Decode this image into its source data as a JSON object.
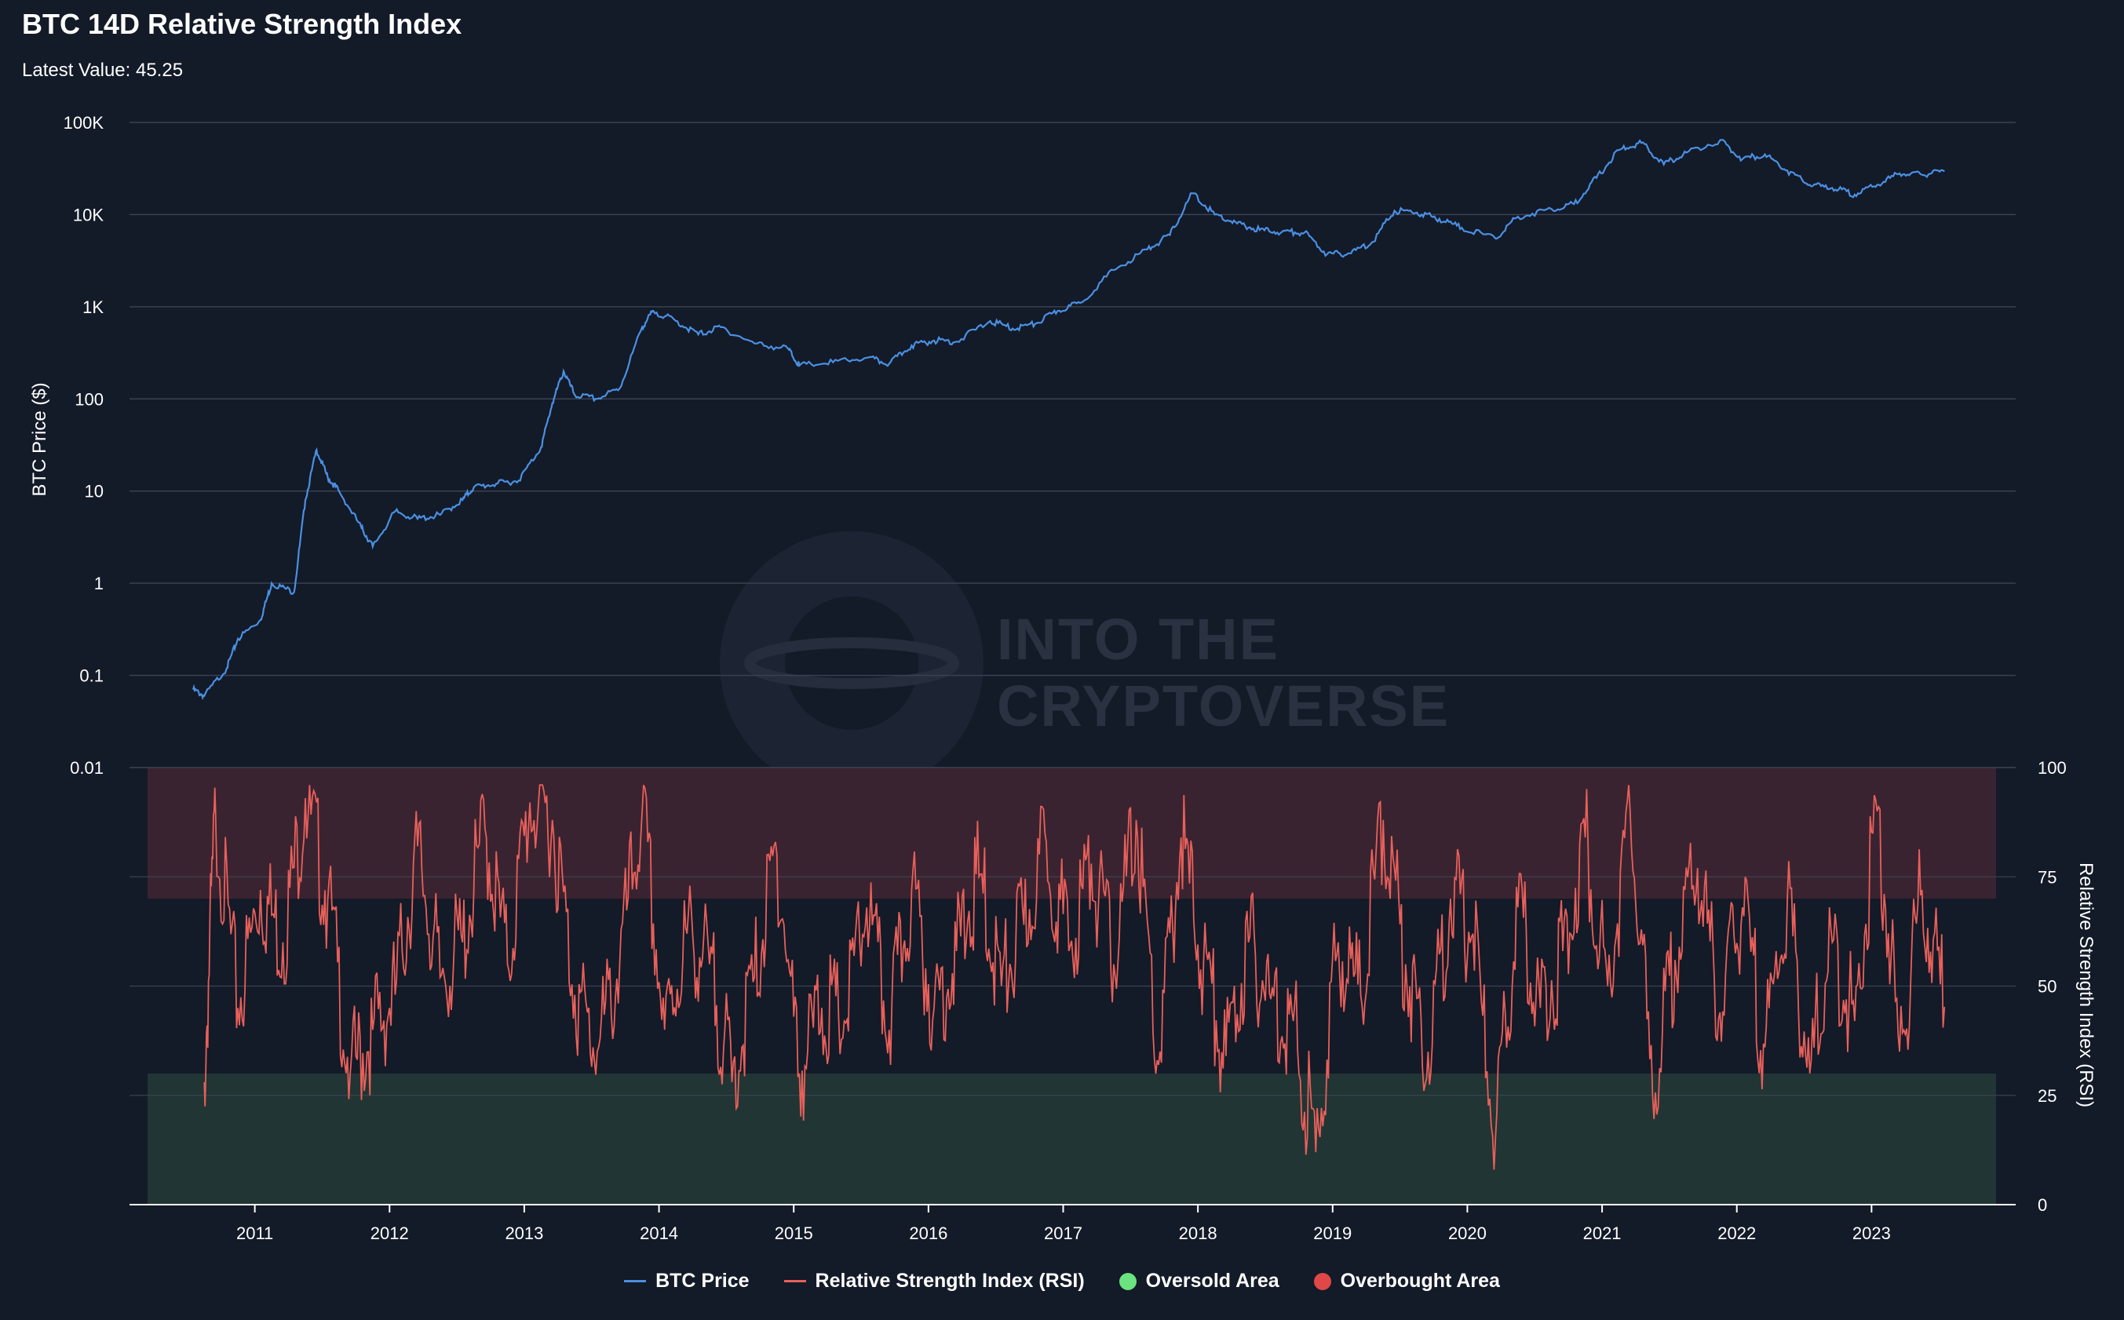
{
  "title": "BTC 14D Relative Strength Index",
  "latest_value_line": "Latest Value: 45.25",
  "watermark": {
    "line1": "INTO THE",
    "line2": "CRYPTOVERSE"
  },
  "colors": {
    "background": "#131a28",
    "price": "#4a90e2",
    "rsi": "#e8605a",
    "overbought_band": "#3a2330",
    "oversold_band": "#213534",
    "oversold_legend": "#6be37f",
    "overbought_legend": "#e04747",
    "grid": "#3a4252"
  },
  "legend": [
    {
      "label": "BTC Price",
      "kind": "line",
      "color": "#4a90e2"
    },
    {
      "label": "Relative Strength Index (RSI)",
      "kind": "line",
      "color": "#e8605a"
    },
    {
      "label": "Oversold Area",
      "kind": "dot",
      "color": "#6be37f"
    },
    {
      "label": "Overbought Area",
      "kind": "dot",
      "color": "#e04747"
    }
  ],
  "chart_data": [
    {
      "type": "line",
      "name": "BTC Price",
      "ylabel": "BTC Price ($)",
      "yscale": "log",
      "ylim": [
        0.01,
        100000
      ],
      "yticks": [
        {
          "value": 100000,
          "label": "100K"
        },
        {
          "value": 10000,
          "label": "10K"
        },
        {
          "value": 1000,
          "label": "1K"
        },
        {
          "value": 100,
          "label": "100"
        },
        {
          "value": 10,
          "label": "10"
        },
        {
          "value": 1,
          "label": "1"
        },
        {
          "value": 0.1,
          "label": "0.1"
        },
        {
          "value": 0.01,
          "label": "0.01"
        }
      ],
      "x_years": [
        "2011",
        "2012",
        "2013",
        "2014",
        "2015",
        "2016",
        "2017",
        "2018",
        "2019",
        "2020",
        "2021",
        "2022",
        "2023"
      ],
      "x": [
        "2010-07",
        "2010-08",
        "2010-10",
        "2010-11",
        "2011-01",
        "2011-02",
        "2011-04",
        "2011-05",
        "2011-06",
        "2011-07",
        "2011-08",
        "2011-10",
        "2011-11",
        "2012-01",
        "2012-03",
        "2012-05",
        "2012-07",
        "2012-08",
        "2012-10",
        "2012-12",
        "2013-02",
        "2013-03",
        "2013-04",
        "2013-05",
        "2013-07",
        "2013-09",
        "2013-11",
        "2013-12",
        "2014-02",
        "2014-04",
        "2014-06",
        "2014-09",
        "2014-12",
        "2015-01",
        "2015-04",
        "2015-07",
        "2015-09",
        "2015-11",
        "2016-01",
        "2016-03",
        "2016-06",
        "2016-08",
        "2016-10",
        "2016-12",
        "2017-02",
        "2017-05",
        "2017-08",
        "2017-10",
        "2017-12",
        "2018-02",
        "2018-04",
        "2018-06",
        "2018-08",
        "2018-10",
        "2018-12",
        "2019-02",
        "2019-04",
        "2019-06",
        "2019-08",
        "2019-10",
        "2019-12",
        "2020-03",
        "2020-05",
        "2020-08",
        "2020-10",
        "2020-12",
        "2021-02",
        "2021-04",
        "2021-06",
        "2021-08",
        "2021-11",
        "2022-01",
        "2022-03",
        "2022-05",
        "2022-07",
        "2022-09",
        "2022-11",
        "2023-01",
        "2023-03",
        "2023-05",
        "2023-07"
      ],
      "y": [
        0.07,
        0.06,
        0.12,
        0.25,
        0.4,
        1.0,
        0.8,
        8,
        28,
        14,
        10,
        4,
        2.5,
        6,
        5,
        5.5,
        8,
        11,
        12,
        13,
        30,
        90,
        200,
        110,
        100,
        130,
        600,
        900,
        700,
        500,
        600,
        400,
        350,
        230,
        250,
        280,
        240,
        380,
        430,
        420,
        700,
        580,
        650,
        900,
        1100,
        2500,
        4200,
        6000,
        17000,
        10000,
        8000,
        6800,
        6500,
        6400,
        3700,
        3800,
        5000,
        11000,
        10500,
        9000,
        7200,
        5500,
        9500,
        11500,
        13000,
        25000,
        50000,
        60000,
        35000,
        47000,
        64000,
        40000,
        45000,
        30000,
        21000,
        19500,
        16500,
        21000,
        28000,
        27000,
        29500
      ]
    },
    {
      "type": "line",
      "name": "Relative Strength Index (RSI)",
      "ylabel": "Relative Strength Index (RSI)",
      "ylim": [
        0,
        100
      ],
      "yticks": [
        0,
        25,
        50,
        75,
        100
      ],
      "overbought_range": [
        70,
        100
      ],
      "oversold_range": [
        0,
        30
      ],
      "latest": 45.25,
      "x": [
        "2010-08",
        "2010-09",
        "2010-11",
        "2011-01",
        "2011-03",
        "2011-05",
        "2011-07",
        "2011-09",
        "2011-11",
        "2012-01",
        "2012-03",
        "2012-05",
        "2012-07",
        "2012-09",
        "2012-11",
        "2013-01",
        "2013-03",
        "2013-05",
        "2013-07",
        "2013-09",
        "2013-11",
        "2014-01",
        "2014-03",
        "2014-05",
        "2014-07",
        "2014-09",
        "2014-11",
        "2015-01",
        "2015-03",
        "2015-05",
        "2015-07",
        "2015-09",
        "2015-11",
        "2016-01",
        "2016-03",
        "2016-05",
        "2016-07",
        "2016-09",
        "2016-11",
        "2017-01",
        "2017-03",
        "2017-05",
        "2017-07",
        "2017-09",
        "2017-11",
        "2018-01",
        "2018-03",
        "2018-05",
        "2018-07",
        "2018-09",
        "2018-11",
        "2019-01",
        "2019-03",
        "2019-05",
        "2019-07",
        "2019-09",
        "2019-11",
        "2020-01",
        "2020-03",
        "2020-05",
        "2020-07",
        "2020-09",
        "2020-11",
        "2021-01",
        "2021-03",
        "2021-05",
        "2021-07",
        "2021-09",
        "2021-11",
        "2022-01",
        "2022-03",
        "2022-05",
        "2022-07",
        "2022-09",
        "2022-11",
        "2023-01",
        "2023-03",
        "2023-05",
        "2023-07"
      ],
      "y": [
        28,
        90,
        45,
        72,
        60,
        93,
        70,
        30,
        40,
        48,
        82,
        52,
        60,
        86,
        55,
        92,
        88,
        48,
        35,
        55,
        90,
        40,
        62,
        55,
        28,
        52,
        80,
        30,
        45,
        42,
        68,
        40,
        72,
        45,
        58,
        75,
        50,
        64,
        83,
        58,
        78,
        55,
        88,
        32,
        84,
        55,
        34,
        60,
        47,
        42,
        12,
        60,
        48,
        88,
        55,
        35,
        70,
        62,
        15,
        68,
        45,
        58,
        84,
        50,
        90,
        25,
        56,
        77,
        44,
        68,
        36,
        70,
        30,
        60,
        42,
        90,
        35,
        72,
        45
      ]
    }
  ]
}
